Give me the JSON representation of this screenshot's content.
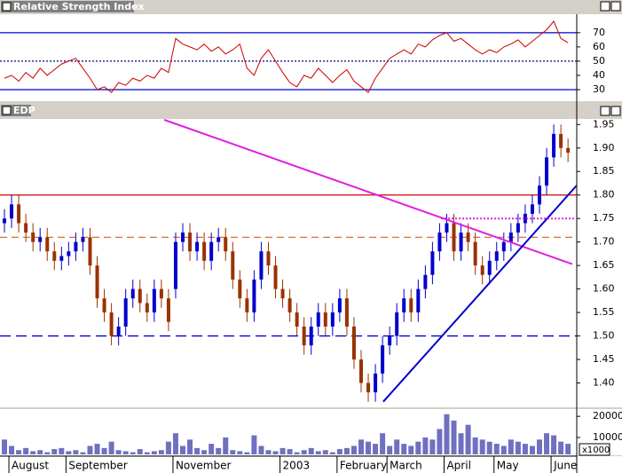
{
  "chart_data": [
    {
      "type": "line",
      "title": "Relative Strength Index",
      "color": "#cc0000",
      "values": [
        38,
        40,
        36,
        42,
        38,
        45,
        40,
        44,
        48,
        50,
        52,
        45,
        38,
        30,
        32,
        28,
        35,
        33,
        38,
        36,
        40,
        38,
        45,
        42,
        66,
        62,
        60,
        58,
        62,
        57,
        60,
        55,
        58,
        62,
        45,
        40,
        52,
        58,
        50,
        42,
        35,
        32,
        40,
        38,
        45,
        40,
        35,
        40,
        44,
        36,
        32,
        28,
        38,
        45,
        52,
        55,
        58,
        55,
        62,
        60,
        65,
        68,
        70,
        64,
        66,
        62,
        58,
        55,
        58,
        56,
        60,
        62,
        65,
        60,
        64,
        68,
        72,
        78,
        66,
        63
      ],
      "ylim": [
        22.5,
        83
      ],
      "yticks": [
        30,
        40,
        50,
        60,
        70
      ],
      "hlines": [
        {
          "value": 70,
          "color": "#0000cc",
          "dash": "none"
        },
        {
          "value": 50,
          "color": "#000080",
          "dash": "2 2"
        },
        {
          "value": 30,
          "color": "#0000cc",
          "dash": "none"
        }
      ]
    },
    {
      "type": "ohlc",
      "title": "EDP",
      "up_color": "#0000cc",
      "down_color": "#993300",
      "open": [
        1.74,
        1.75,
        1.78,
        1.74,
        1.72,
        1.7,
        1.71,
        1.68,
        1.66,
        1.67,
        1.68,
        1.7,
        1.71,
        1.65,
        1.58,
        1.55,
        1.5,
        1.52,
        1.58,
        1.6,
        1.57,
        1.55,
        1.6,
        1.58,
        1.6,
        1.7,
        1.72,
        1.68,
        1.7,
        1.66,
        1.7,
        1.71,
        1.68,
        1.62,
        1.58,
        1.55,
        1.62,
        1.68,
        1.65,
        1.6,
        1.58,
        1.55,
        1.52,
        1.48,
        1.52,
        1.55,
        1.52,
        1.55,
        1.58,
        1.52,
        1.45,
        1.4,
        1.38,
        1.42,
        1.48,
        1.5,
        1.55,
        1.58,
        1.55,
        1.6,
        1.63,
        1.68,
        1.72,
        1.74,
        1.68,
        1.72,
        1.7,
        1.65,
        1.63,
        1.66,
        1.68,
        1.7,
        1.72,
        1.74,
        1.76,
        1.78,
        1.82,
        1.88,
        1.93,
        1.9
      ],
      "high": [
        1.77,
        1.8,
        1.8,
        1.76,
        1.74,
        1.73,
        1.73,
        1.7,
        1.69,
        1.7,
        1.72,
        1.73,
        1.73,
        1.67,
        1.6,
        1.57,
        1.54,
        1.6,
        1.62,
        1.62,
        1.59,
        1.62,
        1.62,
        1.6,
        1.72,
        1.74,
        1.74,
        1.72,
        1.72,
        1.72,
        1.73,
        1.73,
        1.7,
        1.64,
        1.6,
        1.64,
        1.7,
        1.7,
        1.67,
        1.62,
        1.6,
        1.57,
        1.54,
        1.54,
        1.57,
        1.57,
        1.57,
        1.6,
        1.6,
        1.54,
        1.47,
        1.42,
        1.44,
        1.5,
        1.52,
        1.57,
        1.6,
        1.6,
        1.62,
        1.65,
        1.7,
        1.74,
        1.76,
        1.76,
        1.74,
        1.74,
        1.72,
        1.67,
        1.68,
        1.7,
        1.72,
        1.74,
        1.76,
        1.78,
        1.8,
        1.84,
        1.9,
        1.95,
        1.95,
        1.92
      ],
      "low": [
        1.72,
        1.73,
        1.72,
        1.7,
        1.68,
        1.68,
        1.66,
        1.64,
        1.64,
        1.65,
        1.66,
        1.68,
        1.63,
        1.56,
        1.53,
        1.48,
        1.48,
        1.5,
        1.56,
        1.55,
        1.53,
        1.53,
        1.56,
        1.51,
        1.58,
        1.68,
        1.66,
        1.66,
        1.64,
        1.64,
        1.68,
        1.66,
        1.6,
        1.56,
        1.53,
        1.53,
        1.6,
        1.63,
        1.58,
        1.56,
        1.53,
        1.5,
        1.46,
        1.46,
        1.5,
        1.5,
        1.5,
        1.53,
        1.5,
        1.43,
        1.38,
        1.36,
        1.36,
        1.4,
        1.46,
        1.48,
        1.53,
        1.53,
        1.53,
        1.58,
        1.61,
        1.66,
        1.7,
        1.66,
        1.66,
        1.68,
        1.63,
        1.61,
        1.61,
        1.64,
        1.66,
        1.68,
        1.7,
        1.72,
        1.74,
        1.76,
        1.8,
        1.86,
        1.88,
        1.87
      ],
      "close": [
        1.75,
        1.78,
        1.74,
        1.72,
        1.7,
        1.71,
        1.68,
        1.66,
        1.67,
        1.68,
        1.7,
        1.71,
        1.65,
        1.58,
        1.55,
        1.5,
        1.52,
        1.58,
        1.6,
        1.57,
        1.55,
        1.6,
        1.58,
        1.53,
        1.7,
        1.72,
        1.68,
        1.7,
        1.66,
        1.7,
        1.71,
        1.68,
        1.62,
        1.58,
        1.55,
        1.62,
        1.68,
        1.65,
        1.6,
        1.58,
        1.55,
        1.52,
        1.48,
        1.52,
        1.55,
        1.52,
        1.55,
        1.58,
        1.52,
        1.45,
        1.4,
        1.38,
        1.42,
        1.48,
        1.5,
        1.55,
        1.58,
        1.55,
        1.6,
        1.63,
        1.68,
        1.72,
        1.74,
        1.68,
        1.72,
        1.7,
        1.65,
        1.63,
        1.66,
        1.68,
        1.7,
        1.72,
        1.74,
        1.76,
        1.78,
        1.82,
        1.88,
        1.93,
        1.9,
        1.89
      ],
      "ylim": [
        1.35,
        1.96
      ],
      "yticks": [
        {
          "value": 1.4,
          "label": "1.40"
        },
        1.45,
        {
          "value": 1.5,
          "label": "1.50"
        },
        1.55,
        {
          "value": 1.6,
          "label": "1.60"
        },
        1.65,
        {
          "value": 1.7,
          "label": "1.70"
        },
        1.75,
        {
          "value": 1.8,
          "label": "1.80"
        },
        1.85,
        {
          "value": 1.9,
          "label": "1.90"
        },
        1.95
      ],
      "hlines": [
        {
          "value": 1.8,
          "color": "#cc0000",
          "dash": "none"
        },
        {
          "value": 1.71,
          "color": "#e07030",
          "dash": "8 5"
        },
        {
          "value": 1.5,
          "color": "#0000cc",
          "dash": "12 6"
        }
      ],
      "trendlines": [
        {
          "x": [
            22.4,
            79.6
          ],
          "y": [
            1.96,
            1.653
          ],
          "color": "#e020e0",
          "dash": "none"
        },
        {
          "x": [
            53.1,
            80.2
          ],
          "y": [
            1.36,
            1.82
          ],
          "color": "#0000cc",
          "dash": "none"
        },
        {
          "x": [
            61.2,
            80
          ],
          "y": [
            1.75,
            1.75
          ],
          "color": "#e020e0",
          "dash": "2 2"
        }
      ]
    },
    {
      "type": "bar",
      "color": "#7070c0",
      "unit_label": "x1000",
      "categories": [
        null,
        "August",
        null,
        null,
        null,
        null,
        null,
        null,
        null,
        "September",
        null,
        null,
        null,
        null,
        null,
        null,
        null,
        null,
        null,
        null,
        null,
        null,
        null,
        null,
        "November",
        null,
        null,
        null,
        null,
        null,
        null,
        null,
        null,
        null,
        null,
        null,
        null,
        null,
        null,
        "2003",
        null,
        null,
        null,
        null,
        null,
        null,
        null,
        "February",
        null,
        null,
        null,
        null,
        null,
        null,
        "March",
        null,
        null,
        null,
        null,
        null,
        null,
        null,
        "April",
        null,
        null,
        null,
        null,
        null,
        null,
        "May",
        null,
        null,
        null,
        null,
        null,
        null,
        null,
        "June",
        null,
        null
      ],
      "values": [
        9000,
        6000,
        4000,
        5000,
        3500,
        4000,
        3000,
        4500,
        5000,
        3500,
        4000,
        3000,
        6000,
        7000,
        5000,
        8000,
        4000,
        3500,
        3000,
        4500,
        3000,
        3500,
        4000,
        8000,
        12000,
        6000,
        9000,
        5000,
        4000,
        7000,
        5000,
        10000,
        4000,
        3500,
        3000,
        11000,
        6000,
        4000,
        3500,
        5000,
        4500,
        3000,
        4000,
        5000,
        3500,
        4000,
        3000,
        4500,
        5000,
        6000,
        9000,
        8000,
        7000,
        12000,
        6000,
        9000,
        7000,
        6000,
        8000,
        10000,
        9000,
        14000,
        21000,
        18000,
        12000,
        16000,
        10000,
        9000,
        8000,
        7000,
        6000,
        9000,
        8000,
        7000,
        6000,
        9000,
        12000,
        11000,
        8000,
        7000
      ],
      "ylim": [
        2000,
        23000
      ],
      "yticks": [
        10000,
        20000
      ]
    }
  ]
}
